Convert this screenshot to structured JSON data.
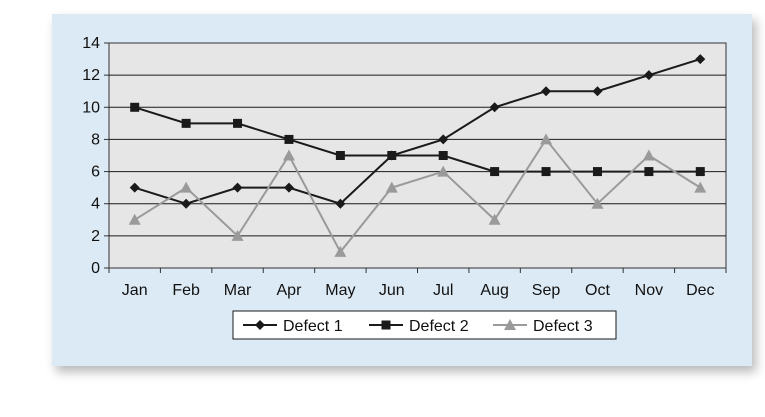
{
  "chart_data": {
    "type": "line",
    "categories": [
      "Jan",
      "Feb",
      "Mar",
      "Apr",
      "May",
      "Jun",
      "Jul",
      "Aug",
      "Sep",
      "Oct",
      "Nov",
      "Dec"
    ],
    "ylim": [
      0,
      14
    ],
    "yticks": [
      "0",
      "2",
      "4",
      "6",
      "8",
      "10",
      "12",
      "14"
    ],
    "grid": "horizontal",
    "legend_position": "bottom",
    "series": [
      {
        "name": "Defect 1",
        "marker": "diamond",
        "color": "#1a1a1a",
        "values": [
          5,
          4,
          5,
          5,
          4,
          7,
          8,
          10,
          11,
          11,
          12,
          13
        ]
      },
      {
        "name": "Defect 2",
        "marker": "square",
        "color": "#1a1a1a",
        "values": [
          10,
          9,
          9,
          8,
          7,
          7,
          7,
          6,
          6,
          6,
          6,
          6
        ]
      },
      {
        "name": "Defect 3",
        "marker": "triangle",
        "color": "#9a9a9a",
        "values": [
          3,
          5,
          2,
          7,
          1,
          5,
          6,
          3,
          8,
          4,
          7,
          5
        ]
      }
    ]
  }
}
